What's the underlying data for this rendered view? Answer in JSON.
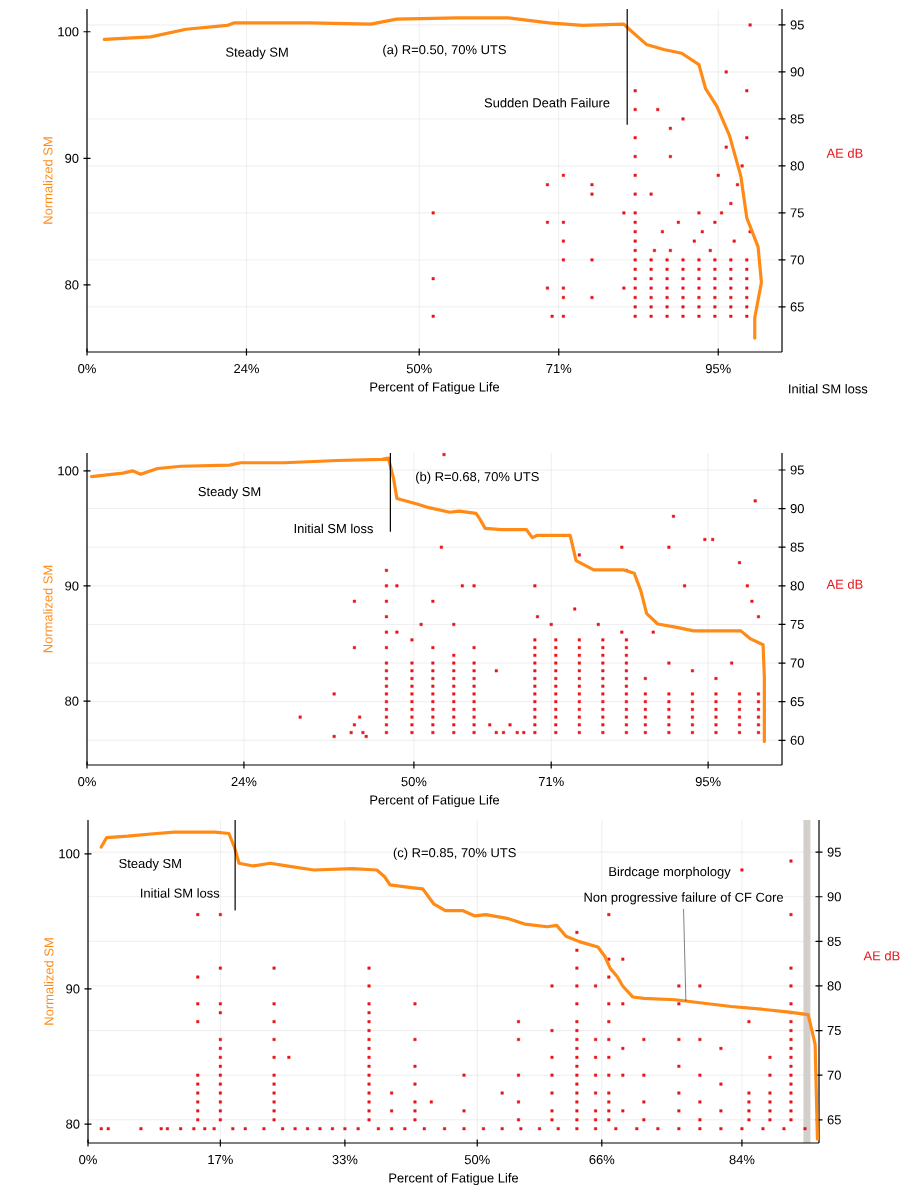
{
  "chart_data": [
    {
      "type": "line",
      "xlabel": "Percent of Fatigue Life",
      "ylabel": "Normalized SM",
      "y2label": "AE dB",
      "xlim": [
        0,
        104.6
      ],
      "xticks": [
        {
          "value": 0,
          "label": "0%"
        },
        {
          "value": 24,
          "label": "24%"
        },
        {
          "value": 50,
          "label": "50%"
        },
        {
          "value": 71,
          "label": "71%"
        },
        {
          "value": 95,
          "label": "95%"
        }
      ],
      "ylim": [
        74.7,
        101.8
      ],
      "yticks": [
        80,
        90,
        100
      ],
      "y2lim": [
        60.2,
        96.7
      ],
      "y2ticks": [
        65,
        70,
        75,
        80,
        85,
        90,
        95
      ],
      "grid": true,
      "ref_lines": [
        {
          "axis": "x",
          "value": 81.3,
          "label": "Sudden Death Failure",
          "color": "#000000"
        }
      ],
      "annotations": [
        "Steady SM",
        "(a) R=0.50, 70% UTS",
        "Initial SM loss"
      ],
      "series": [
        {
          "type": "line",
          "color": "#ff8a16",
          "x": [
            2.6,
            9.6,
            14.9,
            21.1,
            22.1,
            33.4,
            42.7,
            46.6,
            55.7,
            63.4,
            69.5,
            74.6,
            80.8,
            81.6,
            84.2,
            86.8,
            89.5,
            92.1,
            93.1,
            94.8,
            96.7,
            98.4,
            99.3,
            101.0,
            101.5,
            100.5,
            100.5
          ],
          "values": [
            99.4,
            99.6,
            100.2,
            100.5,
            100.7,
            100.7,
            100.6,
            101.0,
            101.1,
            101.1,
            100.7,
            100.5,
            100.6,
            100.2,
            99.0,
            98.6,
            98.3,
            97.4,
            95.5,
            94.1,
            91.8,
            88.6,
            85.3,
            83.0,
            80.2,
            77.4,
            75.8
          ]
        },
        {
          "type": "scatter",
          "axis": "y2",
          "marker": "square",
          "color": "#e8141a",
          "x": [
            52.1,
            52.1,
            52.1,
            69.3,
            69.3,
            69.3,
            70.0,
            71.7,
            71.7,
            71.7,
            71.7,
            71.7,
            71.7,
            71.7,
            76.0,
            76.0,
            76.0,
            76.0,
            80.8,
            80.8,
            82.5,
            82.5,
            82.5,
            82.5,
            82.5,
            82.5,
            82.5,
            84.9,
            84.9,
            84.9,
            84.9,
            84.9,
            84.9,
            84.9,
            87.3,
            87.3,
            87.3,
            87.3,
            87.3,
            87.3,
            87.3,
            89.7,
            89.7,
            89.7,
            89.7,
            89.7,
            89.7,
            89.7,
            92.1,
            92.1,
            92.1,
            92.1,
            92.1,
            92.1,
            92.1,
            94.5,
            94.5,
            94.5,
            94.5,
            94.5,
            94.5,
            94.5,
            96.9,
            96.9,
            96.9,
            96.9,
            96.9,
            96.9,
            96.9,
            99.3,
            99.3,
            99.3,
            99.3,
            99.3,
            99.3,
            99.3,
            82.5,
            82.5,
            82.5,
            82.5,
            82.5,
            82.5,
            82.5,
            82.5,
            82.5,
            82.5,
            82.5,
            85.4,
            86.6,
            87.8,
            89.0,
            89.7,
            87.8,
            85.9,
            91.4,
            92.6,
            93.8,
            94.5,
            95.5,
            95.0,
            96.2,
            96.9,
            97.9,
            98.6,
            99.3,
            99.8,
            99.3,
            96.2,
            99.8,
            84.9,
            92.1,
            97.4,
            87.8
          ],
          "values": [
            75,
            68,
            64,
            78,
            74,
            67,
            64,
            79,
            74,
            72,
            70,
            67,
            66,
            64,
            78,
            77,
            70,
            66,
            75,
            67,
            64,
            65,
            66,
            67,
            68,
            69,
            70,
            64,
            65,
            66,
            67,
            68,
            69,
            70,
            64,
            65,
            66,
            67,
            68,
            69,
            70,
            64,
            65,
            66,
            67,
            68,
            69,
            70,
            64,
            65,
            66,
            67,
            68,
            69,
            70,
            64,
            65,
            66,
            67,
            68,
            69,
            70,
            64,
            65,
            66,
            67,
            68,
            69,
            70,
            64,
            65,
            66,
            67,
            68,
            69,
            70,
            71,
            72,
            73,
            74,
            75,
            77,
            79,
            81,
            83,
            86,
            88,
            71,
            73,
            71,
            74,
            85,
            84,
            86,
            72,
            73,
            71,
            74,
            75,
            79,
            82,
            76,
            78,
            80,
            83,
            73,
            88,
            90,
            95,
            77,
            75,
            72,
            81
          ]
        }
      ]
    },
    {
      "type": "line",
      "xlabel": "Percent of Fatigue Life",
      "ylabel": "Normalized SM",
      "y2label": "AE dB",
      "xlim": [
        0,
        106.3
      ],
      "xticks": [
        {
          "value": 0,
          "label": "0%"
        },
        {
          "value": 24,
          "label": "24%"
        },
        {
          "value": 50,
          "label": "50%"
        },
        {
          "value": 71,
          "label": "71%"
        },
        {
          "value": 95,
          "label": "95%"
        }
      ],
      "ylim": [
        74.45,
        101.55
      ],
      "yticks": [
        80,
        90,
        100
      ],
      "y2lim": [
        56.8,
        97.2
      ],
      "y2ticks": [
        60,
        65,
        70,
        75,
        80,
        85,
        90,
        95
      ],
      "grid": true,
      "ref_lines": [
        {
          "axis": "x",
          "value": 46.4,
          "label": "Initial SM loss",
          "color": "#000000"
        }
      ],
      "annotations": [
        "Steady SM",
        "(b) R=0.68, 70% UTS"
      ],
      "series": [
        {
          "type": "line",
          "color": "#ff8a16",
          "x": [
            0.7,
            5.5,
            7.0,
            8.2,
            10.8,
            14.4,
            21.8,
            23.5,
            30.2,
            38.3,
            45.1,
            46.1,
            46.9,
            47.4,
            50.6,
            52.3,
            55.5,
            56.9,
            59.5,
            60.1,
            60.9,
            63.4,
            67.2,
            68.1,
            68.9,
            73.9,
            74.8,
            77.5,
            82.0,
            83.7,
            84.7,
            85.6,
            87.3,
            90.2,
            92.8,
            100.0,
            101.5,
            103.4,
            103.6,
            103.6
          ],
          "values": [
            99.5,
            99.8,
            100.0,
            99.7,
            100.2,
            100.4,
            100.5,
            100.7,
            100.7,
            100.9,
            101.0,
            101.1,
            99.3,
            97.6,
            97.1,
            96.8,
            96.4,
            96.5,
            96.3,
            95.8,
            95.0,
            94.9,
            94.9,
            94.2,
            94.4,
            94.4,
            92.2,
            91.4,
            91.4,
            91.1,
            89.6,
            87.6,
            86.7,
            86.4,
            86.1,
            86.1,
            85.4,
            84.9,
            82.1,
            76.5
          ]
        },
        {
          "type": "scatter",
          "axis": "y2",
          "marker": "square",
          "color": "#e8141a",
          "x": [
            32.6,
            37.8,
            37.8,
            40.4,
            40.9,
            40.9,
            40.9,
            41.7,
            42.2,
            42.7,
            45.8,
            45.8,
            45.8,
            45.8,
            45.8,
            45.8,
            45.8,
            45.8,
            45.8,
            45.8,
            49.7,
            49.7,
            49.7,
            49.7,
            49.7,
            49.7,
            49.7,
            49.7,
            49.7,
            49.7,
            52.9,
            52.9,
            52.9,
            52.9,
            52.9,
            52.9,
            52.9,
            52.9,
            52.9,
            52.9,
            56.1,
            56.1,
            56.1,
            56.1,
            56.1,
            56.1,
            56.1,
            56.1,
            56.1,
            56.1,
            59.2,
            59.2,
            59.2,
            59.2,
            59.2,
            59.2,
            59.2,
            59.2,
            59.2,
            59.2,
            45.8,
            45.8,
            45.8,
            45.8,
            45.8,
            45.8,
            47.4,
            47.4,
            49.7,
            51.1,
            52.9,
            52.9,
            54.2,
            54.6,
            56.1,
            56.1,
            57.4,
            59.2,
            59.2,
            61.6,
            62.6,
            63.7,
            64.7,
            65.8,
            62.6,
            66.8,
            68.5,
            68.5,
            68.5,
            68.5,
            68.5,
            68.5,
            68.5,
            68.5,
            68.5,
            68.5,
            68.5,
            68.5,
            68.5,
            71.7,
            71.7,
            71.7,
            71.7,
            71.7,
            71.7,
            71.7,
            71.7,
            71.7,
            71.7,
            71.7,
            71.7,
            71.7,
            75.3,
            75.3,
            75.3,
            75.3,
            75.3,
            75.3,
            75.3,
            75.3,
            75.3,
            75.3,
            75.3,
            75.3,
            75.3,
            78.9,
            78.9,
            78.9,
            78.9,
            78.9,
            78.9,
            78.9,
            78.9,
            78.9,
            78.9,
            78.9,
            78.9,
            78.9,
            82.5,
            82.5,
            82.5,
            82.5,
            82.5,
            82.5,
            82.5,
            82.5,
            82.5,
            82.5,
            82.5,
            82.5,
            82.5,
            68.5,
            68.9,
            71.0,
            75.3,
            74.6,
            78.2,
            81.8,
            82.5,
            81.8,
            85.4,
            85.4,
            85.4,
            85.4,
            85.4,
            85.4,
            89.0,
            89.0,
            89.0,
            89.0,
            89.0,
            89.0,
            92.6,
            92.6,
            92.6,
            92.6,
            92.6,
            92.6,
            96.2,
            96.2,
            96.2,
            96.2,
            96.2,
            96.2,
            99.8,
            99.8,
            99.8,
            99.8,
            99.8,
            99.8,
            102.7,
            102.7,
            102.7,
            102.7,
            102.7,
            102.7,
            85.4,
            86.6,
            89.0,
            89.0,
            89.7,
            91.4,
            92.6,
            94.5,
            95.7,
            96.2,
            98.6,
            99.8,
            101.0,
            101.7,
            102.2,
            102.7
          ],
          "values": [
            63,
            66,
            60.5,
            61,
            78,
            72,
            62,
            63,
            61,
            60.5,
            61,
            62,
            63,
            64,
            65,
            66,
            67,
            68,
            69,
            70,
            61,
            62,
            63,
            64,
            65,
            66,
            67,
            68,
            69,
            70,
            61,
            62,
            63,
            64,
            65,
            66,
            67,
            68,
            69,
            70,
            61,
            62,
            63,
            64,
            65,
            66,
            67,
            68,
            69,
            70,
            61,
            62,
            63,
            64,
            65,
            66,
            67,
            68,
            69,
            70,
            82,
            80,
            78,
            76,
            74,
            72,
            80,
            74,
            73,
            75,
            72,
            78,
            85,
            97,
            75,
            71,
            80,
            80,
            72,
            62,
            61,
            61,
            62,
            61,
            69,
            61,
            61,
            62,
            63,
            64,
            65,
            66,
            67,
            68,
            69,
            70,
            71,
            72,
            73,
            61,
            62,
            63,
            64,
            65,
            66,
            67,
            68,
            69,
            70,
            71,
            72,
            73,
            61,
            62,
            63,
            64,
            65,
            66,
            67,
            68,
            69,
            70,
            71,
            72,
            73,
            61,
            62,
            63,
            64,
            65,
            66,
            67,
            68,
            69,
            70,
            71,
            72,
            73,
            61,
            62,
            63,
            64,
            65,
            66,
            67,
            68,
            69,
            70,
            71,
            72,
            73,
            80,
            76,
            75,
            84,
            77,
            75,
            74,
            82,
            85,
            61,
            62,
            63,
            64,
            65,
            66,
            61,
            62,
            63,
            64,
            65,
            66,
            61,
            62,
            63,
            64,
            65,
            66,
            61,
            62,
            63,
            64,
            65,
            66,
            61,
            62,
            63,
            64,
            65,
            66,
            61,
            62,
            63,
            64,
            65,
            66,
            68,
            74,
            70,
            85,
            89,
            80,
            69,
            86,
            86,
            68,
            70,
            83,
            80,
            78,
            91,
            76
          ]
        }
      ]
    },
    {
      "type": "line",
      "xlabel": "Percent of Fatigue Life",
      "ylabel": "Normalized SM",
      "y2label": "AE dB",
      "xlim": [
        0,
        93.9
      ],
      "xticks": [
        {
          "value": 0,
          "label": "0%"
        },
        {
          "value": 17,
          "label": "17%"
        },
        {
          "value": 33,
          "label": "33%"
        },
        {
          "value": 50,
          "label": "50%"
        },
        {
          "value": 66,
          "label": "66%"
        },
        {
          "value": 84,
          "label": "84%"
        }
      ],
      "ylim": [
        78.6,
        102.5
      ],
      "yticks": [
        80,
        90,
        100
      ],
      "y2lim": [
        62.4,
        98.6
      ],
      "y2ticks": [
        65,
        70,
        75,
        80,
        85,
        90,
        95
      ],
      "grid": true,
      "ref_lines": [
        {
          "axis": "x",
          "value": 18.9,
          "label": "Initial SM loss",
          "color": "#000000"
        }
      ],
      "bands": [
        {
          "axis": "x",
          "from": 91.9,
          "to": 92.8,
          "color": "#d3cfcb"
        }
      ],
      "annotations": [
        "Steady SM",
        "(c) R=0.85, 70% UTS",
        "Birdcage morphology",
        {
          "text": "Non progressive failure of CF Core",
          "x": 76.8,
          "y": 89.1
        }
      ],
      "series": [
        {
          "type": "line",
          "color": "#ff8a16",
          "x": [
            1.7,
            2.4,
            5.1,
            8.8,
            11.1,
            16.3,
            18.1,
            18.8,
            19.4,
            21.2,
            23.4,
            25.5,
            29.0,
            34.0,
            37.1,
            38.1,
            38.8,
            41.5,
            43.0,
            44.4,
            45.9,
            48.1,
            49.7,
            51.1,
            54.0,
            56.1,
            59.0,
            60.2,
            61.4,
            63.1,
            65.5,
            66.4,
            67.1,
            68.0,
            68.7,
            70.0,
            71.4,
            75.4,
            82.6,
            86.5,
            89.8,
            92.5,
            92.8,
            93.4,
            93.7
          ],
          "values": [
            100.5,
            101.2,
            101.3,
            101.5,
            101.6,
            101.6,
            101.5,
            100.5,
            99.3,
            99.1,
            99.3,
            99.1,
            98.8,
            98.9,
            98.8,
            98.3,
            97.7,
            97.5,
            97.4,
            96.3,
            95.8,
            95.8,
            95.4,
            95.5,
            95.2,
            94.8,
            94.6,
            94.7,
            93.9,
            93.5,
            93.1,
            92.4,
            91.5,
            90.9,
            90.2,
            89.4,
            89.3,
            89.2,
            88.7,
            88.5,
            88.3,
            88.1,
            87.4,
            85.9,
            78.9
          ]
        },
        {
          "type": "scatter",
          "axis": "y2",
          "marker": "square",
          "color": "#e8141a",
          "x": [
            1.7,
            2.6,
            6.8,
            9.4,
            10.2,
            11.9,
            13.6,
            15.0,
            16.2,
            18.6,
            20.2,
            22.6,
            25.0,
            26.6,
            28.2,
            29.8,
            31.4,
            33.0,
            34.7,
            37.3,
            39.0,
            40.7,
            43.2,
            45.8,
            48.3,
            50.8,
            53.2,
            55.6,
            58.0,
            60.4,
            62.8,
            65.2,
            67.8,
            70.5,
            73.2,
            75.9,
            78.6,
            81.3,
            84.0,
            86.7,
            89.4,
            92.1,
            14.1,
            14.1,
            14.1,
            14.1,
            14.1,
            14.1,
            14.1,
            14.1,
            14.1,
            14.1,
            17.0,
            17.0,
            17.0,
            17.0,
            17.0,
            17.0,
            17.0,
            17.0,
            17.0,
            17.0,
            17.0,
            17.0,
            17.0,
            17.0,
            23.9,
            23.9,
            23.9,
            23.9,
            23.9,
            23.9,
            23.9,
            23.9,
            23.9,
            23.9,
            23.9,
            25.8,
            36.1,
            36.1,
            36.1,
            36.1,
            36.1,
            36.1,
            36.1,
            36.1,
            36.1,
            36.1,
            36.1,
            36.1,
            36.1,
            36.1,
            36.1,
            36.1,
            39.0,
            39.0,
            42.0,
            42.0,
            42.0,
            42.0,
            42.0,
            42.0,
            42.0,
            44.1,
            48.3,
            48.3,
            53.2,
            55.3,
            55.3,
            55.3,
            55.3,
            55.3,
            59.6,
            59.6,
            59.6,
            59.6,
            59.6,
            59.6,
            59.6,
            62.8,
            62.8,
            62.8,
            62.8,
            62.8,
            62.8,
            62.8,
            62.8,
            62.8,
            62.8,
            62.8,
            62.8,
            62.8,
            62.8,
            62.8,
            62.8,
            62.8,
            65.2,
            65.2,
            65.2,
            65.2,
            65.2,
            65.2,
            65.2,
            66.9,
            66.9,
            66.9,
            66.9,
            66.9,
            66.9,
            66.9,
            66.9,
            66.9,
            66.9,
            66.9,
            66.9,
            68.7,
            68.7,
            68.7,
            68.7,
            68.7,
            71.4,
            71.4,
            71.4,
            71.4,
            75.9,
            75.9,
            75.9,
            75.9,
            75.9,
            75.9,
            78.6,
            78.6,
            78.6,
            78.6,
            78.6,
            81.3,
            81.3,
            81.3,
            84.9,
            84.9,
            84.9,
            84.9,
            84.9,
            87.6,
            87.6,
            87.6,
            87.6,
            87.6,
            87.6,
            90.3,
            90.3,
            90.3,
            90.3,
            90.3,
            90.3,
            90.3,
            90.3,
            90.3,
            90.3,
            90.3,
            90.3,
            90.3,
            90.3,
            90.3,
            90.3,
            90.3,
            90.3,
            84.0
          ],
          "values": [
            64,
            64,
            64,
            64,
            64,
            64,
            64,
            64,
            64,
            64,
            64,
            64,
            64,
            64,
            64,
            64,
            64,
            64,
            64,
            64,
            64,
            64,
            64,
            64,
            64,
            64,
            64,
            64,
            64,
            64,
            64,
            64,
            64,
            64,
            64,
            64,
            64,
            64,
            64,
            64,
            64,
            64,
            65,
            66,
            67,
            68,
            69,
            70,
            76,
            78,
            81,
            88,
            65,
            66,
            67,
            68,
            69,
            70,
            71,
            72,
            73,
            74,
            77,
            78,
            82,
            88,
            65,
            66,
            67,
            68,
            69,
            70,
            72,
            74,
            76,
            78,
            82,
            72,
            65,
            66,
            67,
            68,
            69,
            70,
            71,
            72,
            73,
            74,
            75,
            76,
            77,
            78,
            80,
            82,
            66,
            68,
            65,
            66,
            67,
            69,
            71,
            74,
            78,
            67,
            66,
            70,
            68,
            65,
            67,
            70,
            74,
            76,
            65,
            66,
            68,
            70,
            72,
            75,
            80,
            65,
            66,
            67,
            68,
            69,
            70,
            71,
            72,
            73,
            74,
            75,
            76,
            78,
            80,
            82,
            84,
            86,
            65,
            66,
            68,
            70,
            72,
            74,
            80,
            65,
            66,
            67,
            68,
            70,
            72,
            74,
            76,
            78,
            81,
            83,
            88,
            66,
            70,
            73,
            78,
            83,
            65,
            67,
            70,
            74,
            66,
            68,
            71,
            74,
            78,
            80,
            65,
            67,
            70,
            74,
            80,
            66,
            69,
            73,
            65,
            66,
            67,
            68,
            76,
            65,
            66,
            67,
            68,
            70,
            72,
            65,
            66,
            67,
            68,
            69,
            70,
            71,
            72,
            73,
            74,
            75,
            76,
            77,
            78,
            80,
            82,
            88,
            94,
            93
          ]
        }
      ]
    }
  ]
}
